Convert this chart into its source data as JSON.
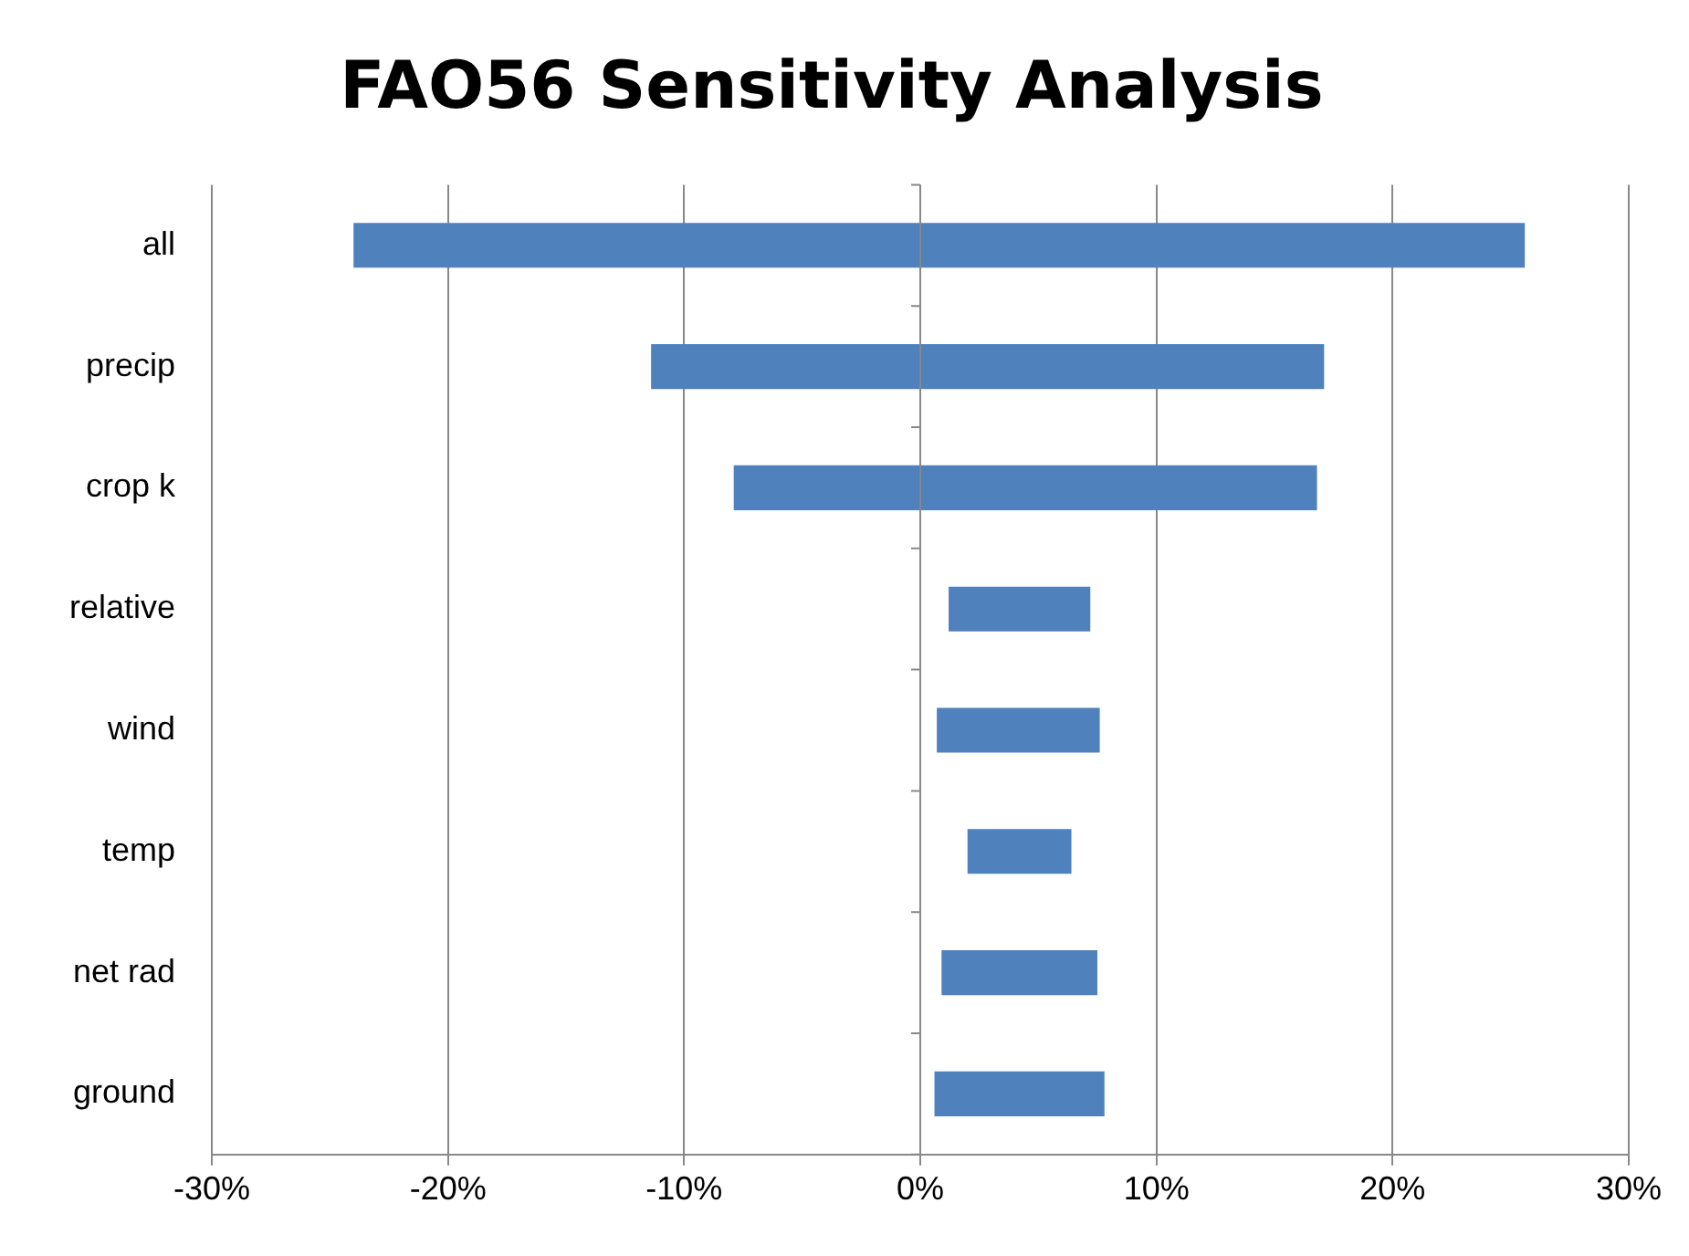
{
  "chart_data": {
    "type": "bar",
    "title": "FAO56 Sensitivity Analysis",
    "orientation": "horizontal",
    "categories": [
      "all",
      "precip",
      "crop k",
      "relative",
      "wind",
      "temp",
      "net rad",
      "ground"
    ],
    "base": [
      -24.0,
      -11.4,
      -7.9,
      1.2,
      0.7,
      2.0,
      0.9,
      0.6
    ],
    "values": [
      49.6,
      28.5,
      24.7,
      6.0,
      6.9,
      4.4,
      6.6,
      7.2
    ],
    "color": "#4f81bd",
    "xlim": [
      -30,
      30
    ],
    "xticks": [
      {
        "value": -30,
        "label": "-30%"
      },
      {
        "value": -20,
        "label": "-20%"
      },
      {
        "value": -10,
        "label": "-10%"
      },
      {
        "value": 0,
        "label": "0%"
      },
      {
        "value": 10,
        "label": "10%"
      },
      {
        "value": 20,
        "label": "20%"
      },
      {
        "value": 30,
        "label": "30%"
      }
    ],
    "grid": "x",
    "legend": false
  }
}
